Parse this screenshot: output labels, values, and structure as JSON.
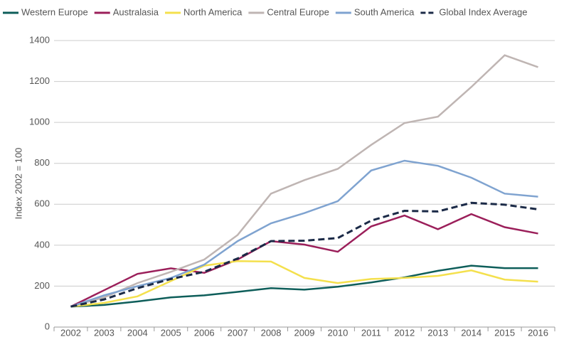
{
  "chart_data": {
    "type": "line",
    "y_label": "Index 2002 = 100",
    "categories": [
      "2002",
      "2003",
      "2004",
      "2005",
      "2006",
      "2007",
      "2008",
      "2009",
      "2010",
      "2011",
      "2012",
      "2013",
      "2014",
      "2015",
      "2016"
    ],
    "ylim": [
      0,
      1400
    ],
    "yticks": [
      0,
      200,
      400,
      600,
      800,
      1000,
      1200,
      1400
    ],
    "grid": true,
    "series": [
      {
        "name": "Western Europe",
        "color": "#0e5e5a",
        "values": [
          100,
          108,
          125,
          145,
          155,
          172,
          190,
          183,
          197,
          218,
          243,
          275,
          300,
          288,
          288
        ]
      },
      {
        "name": "Australasia",
        "color": "#9b1f5a",
        "values": [
          100,
          180,
          260,
          287,
          265,
          330,
          420,
          403,
          368,
          492,
          545,
          478,
          552,
          488,
          457
        ]
      },
      {
        "name": "North America",
        "color": "#f4e04d",
        "values": [
          100,
          118,
          150,
          225,
          300,
          322,
          320,
          240,
          215,
          235,
          240,
          250,
          277,
          232,
          222
        ]
      },
      {
        "name": "Central Europe",
        "color": "#bfb5b3",
        "values": [
          100,
          145,
          215,
          270,
          330,
          450,
          652,
          718,
          773,
          890,
          997,
          1028,
          1173,
          1328,
          1270
        ]
      },
      {
        "name": "South America",
        "color": "#7fa3d0",
        "values": [
          100,
          155,
          200,
          240,
          305,
          420,
          507,
          557,
          615,
          765,
          813,
          788,
          730,
          652,
          637
        ]
      },
      {
        "name": "Global Index Average",
        "color": "#1b2a47",
        "dashed": true,
        "values": [
          100,
          135,
          190,
          235,
          270,
          335,
          420,
          422,
          435,
          520,
          568,
          565,
          607,
          598,
          575
        ]
      }
    ]
  }
}
